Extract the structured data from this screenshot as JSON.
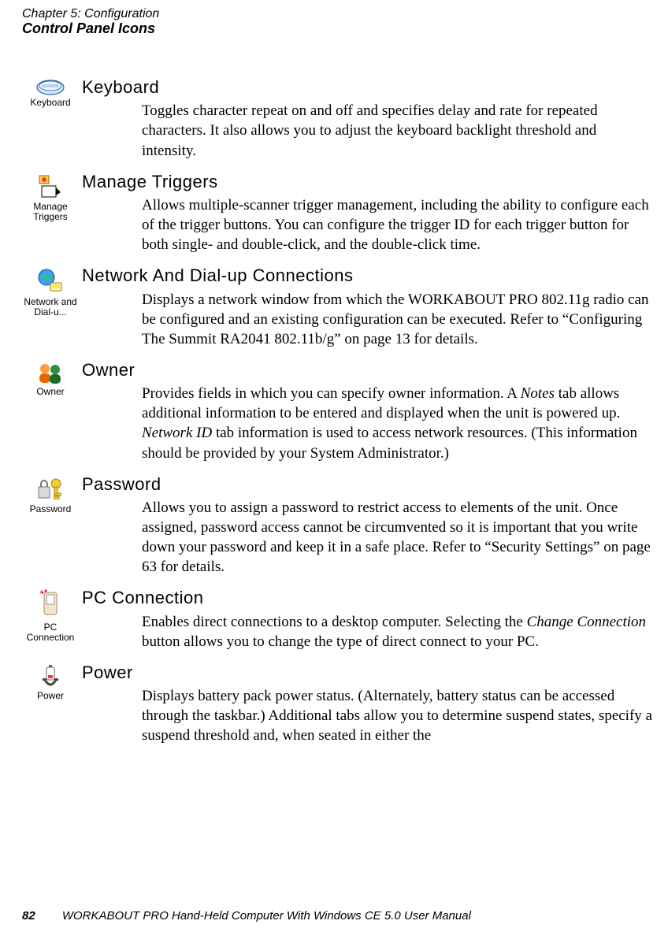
{
  "header": {
    "chapter_line": "Chapter  5:  Configuration",
    "section_line": "Control Panel Icons"
  },
  "entries": [
    {
      "icon_label": "Keyboard",
      "title": "Keyboard",
      "body_html": "Toggles character repeat on and off and specifies delay and rate for repeated characters. It also allows you to adjust the keyboard backlight threshold and intensity."
    },
    {
      "icon_label": "Manage Triggers",
      "title": "Manage Triggers",
      "body_html": "Allows multiple-scanner trigger management, including the ability to configure each of the trigger buttons. You can configure the trigger ID for each trigger button for both single- and double-click, and the double-click time."
    },
    {
      "icon_label": "Network and Dial-u...",
      "title": "Network And Dial-up Connections",
      "body_html": "Displays a network window from which the WORKABOUT PRO 802.11g radio can be configured and an existing configuration can be executed. Refer to “Configuring The Summit RA2041 802.11b/g” on page 13 for details."
    },
    {
      "icon_label": "Owner",
      "title": "Owner",
      "body_html": "Provides fields in which you can specify owner information. A <span class=\"italic\">Notes</span> tab allows additional information to be entered and displayed when the unit is powered up. <span class=\"italic\">Network ID</span> tab information is used to access network resources. (This information should be provided by your System Administrator.)"
    },
    {
      "icon_label": "Password",
      "title": "Password",
      "body_html": "Allows you to assign a password to restrict access to elements of the unit. Once assigned, password access cannot be circumvented so it is important that you write down your password and keep it in a safe place. Refer to “Security Settings” on page 63 for details."
    },
    {
      "icon_label": "PC Connection",
      "title": "PC Connection",
      "body_html": "Enables direct connections to a desktop computer. Selecting the <span class=\"italic\">Change Connection</span> button allows you to change the type of direct connect to your PC."
    },
    {
      "icon_label": "Power",
      "title": "Power",
      "body_html": "Displays battery pack power status. (Alternately, battery status can be accessed through the taskbar.) Additional tabs allow you to determine suspend states, specify a suspend threshold and, when seated in either the"
    }
  ],
  "footer": {
    "page_number": "82",
    "title": "WORKABOUT PRO Hand-Held Computer With Windows CE 5.0 User Manual"
  },
  "icons": {
    "keyboard_svg": "<svg class=\"ico\" width=\"38\" height=\"22\" viewBox=\"0 0 38 22\"><ellipse cx=\"19\" cy=\"11\" rx=\"17\" ry=\"9\" fill=\"#cfe8ff\" stroke=\"#2763a7\" stroke-width=\"1.2\"/><ellipse cx=\"19\" cy=\"9\" rx=\"14\" ry=\"6\" fill=\"#eef7ff\" stroke=\"#2763a7\" stroke-width=\"0.8\"/><g stroke=\"#2763a7\" stroke-width=\"0.6\"><line x1=\"8\" y1=\"8\" x2=\"30\" y2=\"8\"/><line x1=\"8\" y1=\"10\" x2=\"30\" y2=\"10\"/></g></svg>",
    "manage_triggers_svg": "<svg class=\"ico\" width=\"34\" height=\"34\" viewBox=\"0 0 34 34\"><rect x=\"3\" y=\"3\" width=\"12\" height=\"10\" fill=\"#ffd24d\" stroke=\"#8a6a00\"/><circle cx=\"9\" cy=\"8\" r=\"3\" fill=\"#ff3333\"/><path d=\"M6 16 L24 16 L24 30 L6 30 Z\" fill=\"#ffffff\" stroke=\"#000\"/><path d=\"M24 18 L30 24 L24 28 Z\" fill=\"#000\"/></svg>",
    "network_svg": "<svg class=\"ico\" width=\"36\" height=\"36\" viewBox=\"0 0 36 36\"><circle cx=\"13\" cy=\"13\" r=\"10\" fill=\"#3aa0ff\" stroke=\"#0a4a8a\"/><path d=\"M5 13 Q 13 5 21 13 Q 13 21 5 13\" fill=\"#35c26b\" opacity=\"0.8\"/><rect x=\"18\" y=\"20\" width=\"14\" height=\"10\" rx=\"1\" fill=\"#fff0b3\" stroke=\"#a08000\"/><rect x=\"20\" y=\"22\" width=\"10\" height=\"5\" fill=\"#ffe36b\"/></svg>",
    "owner_svg": "<svg class=\"ico\" width=\"36\" height=\"30\" viewBox=\"0 0 36 30\"><circle cx=\"11\" cy=\"9\" r=\"6\" fill=\"#ff9a3d\"/><rect x=\"4\" y=\"15\" width=\"14\" height=\"12\" rx=\"5\" fill=\"#e06a00\"/><circle cx=\"24\" cy=\"10\" r=\"6\" fill=\"#2f8f3f\"/><rect x=\"17\" y=\"16\" width=\"14\" height=\"12\" rx=\"5\" fill=\"#1e6b2b\"/></svg>",
    "password_svg": "<svg class=\"ico\" width=\"38\" height=\"34\" viewBox=\"0 0 38 34\"><rect x=\"4\" y=\"14\" width=\"14\" height=\"14\" rx=\"1\" fill=\"#d9d9d9\" stroke=\"#777\"/><path d=\"M7 14 v-4 a4 4 0 0 1 8 0 v4\" fill=\"none\" stroke=\"#777\" stroke-width=\"2\"/><circle cx=\"26\" cy=\"10\" r=\"6\" fill=\"#f3cc3a\" stroke=\"#aa8800\"/><rect x=\"24\" y=\"14\" width=\"4\" height=\"14\" fill=\"#f3cc3a\" stroke=\"#aa8800\"/><rect x=\"24\" y=\"22\" width=\"8\" height=\"3\" fill=\"#f3cc3a\" stroke=\"#aa8800\"/><rect x=\"24\" y=\"26\" width=\"6\" height=\"3\" fill=\"#f3cc3a\" stroke=\"#aa8800\"/></svg>",
    "pc_connection_svg": "<svg class=\"ico\" width=\"32\" height=\"40\" viewBox=\"0 0 32 40\"><rect x=\"8\" y=\"4\" width=\"16\" height=\"28\" rx=\"3\" fill=\"#f2e6c8\" stroke=\"#a88\"/><rect x=\"11\" y=\"7\" width=\"10\" height=\"12\" fill=\"#ffffff\" stroke=\"#999\"/><circle cx=\"6\" cy=\"4\" r=\"1.5\" fill=\"#ff0000\"/><circle cx=\"10\" cy=\"2\" r=\"1.5\" fill=\"#ff0000\"/><path d=\"M4 6 Q 2 2 6 1\" fill=\"none\" stroke=\"#ff7777\"/></svg>",
    "power_svg": "<svg class=\"ico\" width=\"30\" height=\"32\" viewBox=\"0 0 30 32\"><rect x=\"10\" y=\"4\" width=\"10\" height=\"16\" rx=\"2\" fill=\"#ffffff\" stroke=\"#666\"/><rect x=\"13\" y=\"1\" width=\"4\" height=\"3\" fill=\"#666\"/><rect x=\"12\" y=\"14\" width=\"6\" height=\"4\" fill=\"#ff3333\"/><path d=\"M8 20 Q 15 32 22 20\" fill=\"none\" stroke=\"#444\" stroke-width=\"3\"/><rect x=\"5\" y=\"18\" width=\"5\" height=\"3\" fill=\"#444\"/><rect x=\"20\" y=\"18\" width=\"5\" height=\"3\" fill=\"#444\"/></svg>"
  }
}
